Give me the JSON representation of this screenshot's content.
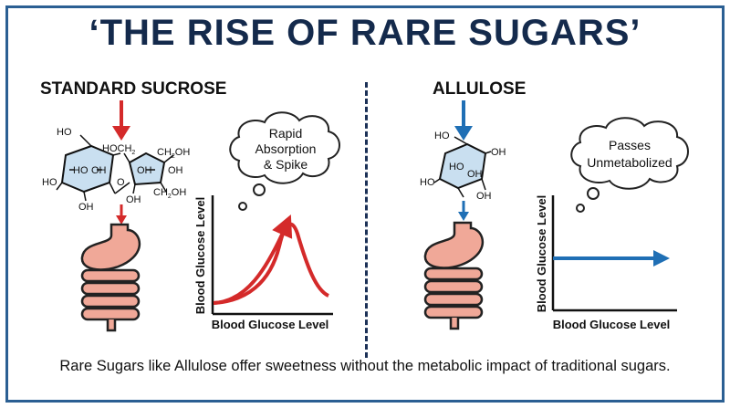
{
  "title": "‘THE RISE OF RARE SUGARS’",
  "left": {
    "heading": "STANDARD SUCROSE",
    "bubble": {
      "line1": "Rapid",
      "line2": "Absorption",
      "line3": "& Spike"
    },
    "chart": {
      "xlabel": "Blood Glucose Level",
      "ylabel": "Blood Glucose Level",
      "curve": "spike"
    },
    "molecule": {
      "ho_top": "HO",
      "hoch2": "HOCH",
      "hoch2_sub": "2",
      "ring_ho1": "HO",
      "ring_oh1": "OH",
      "ho_left": "HO",
      "bottom_oh": "OH",
      "link_o": "O",
      "fur_oh": "OH",
      "ch2oh_top": "CH",
      "ch2oh_top_sub": "2",
      "ch2oh_top_tail": "OH",
      "fur_oh2": "OH",
      "ch2oh_bot": "CH",
      "ch2oh_bot_sub": "2",
      "ch2oh_bot_tail": "OH",
      "fur_bottom_oh": "OH"
    }
  },
  "right": {
    "heading": "ALLULOSE",
    "bubble": {
      "line1": "Passes",
      "line2": "Unmetabolized"
    },
    "chart": {
      "xlabel": "Blood Glucose Level",
      "ylabel": "Blood Glucose Level",
      "curve": "flat"
    },
    "molecule": {
      "ho_top": "HO",
      "oh_right": "OH",
      "ring_ho": "HO",
      "ring_oh": "OH",
      "ho_left": "HO",
      "bottom_oh": "OH"
    }
  },
  "footer": "Rare Sugars like Allulose offer sweetness without the metabolic impact of traditional sugars.",
  "colors": {
    "frame": "#2b5f93",
    "title": "#142a4c",
    "red_arrow": "#d42a2a",
    "blue_arrow": "#1f6fb5",
    "ring_fill": "#c9dff0",
    "stomach": "#f0a898"
  }
}
